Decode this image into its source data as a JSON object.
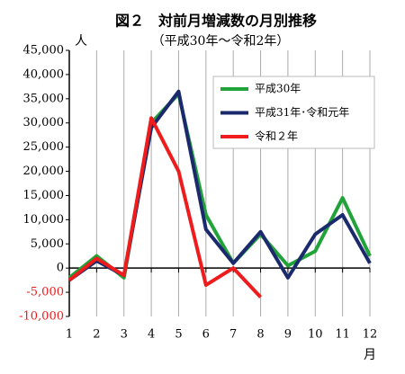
{
  "chart_data": {
    "type": "line",
    "title": "図２　対前月増減数の月別推移",
    "subtitle": "（平成30年～令和2年）",
    "y_axis_label": "人",
    "x_axis_label": "月",
    "categories": [
      "1",
      "2",
      "3",
      "4",
      "5",
      "6",
      "7",
      "8",
      "9",
      "10",
      "11",
      "12"
    ],
    "series": [
      {
        "name": "平成30年",
        "color": "#22a33a",
        "values": [
          -2000,
          2500,
          -2000,
          30000,
          36000,
          11000,
          1000,
          7000,
          500,
          3500,
          14500,
          2500
        ]
      },
      {
        "name": "平成31年･令和元年",
        "color": "#1a2a6c",
        "values": [
          -2500,
          1500,
          -1500,
          29000,
          36500,
          8000,
          1000,
          7500,
          -2000,
          7000,
          11000,
          1000
        ]
      },
      {
        "name": "令和２年",
        "color": "#ee1c1c",
        "values": [
          -2500,
          2000,
          -1500,
          31000,
          20000,
          -3500,
          0,
          -6000,
          null,
          null,
          null,
          null
        ]
      }
    ],
    "ylim": [
      -10000,
      45000
    ],
    "yticks": [
      {
        "value": -10000,
        "label": "-10,000"
      },
      {
        "value": -5000,
        "label": "-5,000"
      },
      0,
      {
        "value": 5000,
        "label": "5,000"
      },
      {
        "value": 10000,
        "label": "10,000"
      },
      {
        "value": 15000,
        "label": "15,000"
      },
      {
        "value": 20000,
        "label": "20,000"
      },
      {
        "value": 25000,
        "label": "25,000"
      },
      {
        "value": 30000,
        "label": "30,000"
      },
      {
        "value": 35000,
        "label": "35,000"
      },
      {
        "value": 40000,
        "label": "40,000"
      },
      {
        "value": 45000,
        "label": "45,000"
      }
    ],
    "negative_tick_color": "#ee1c1c",
    "grid": true,
    "legend": "upper right"
  }
}
